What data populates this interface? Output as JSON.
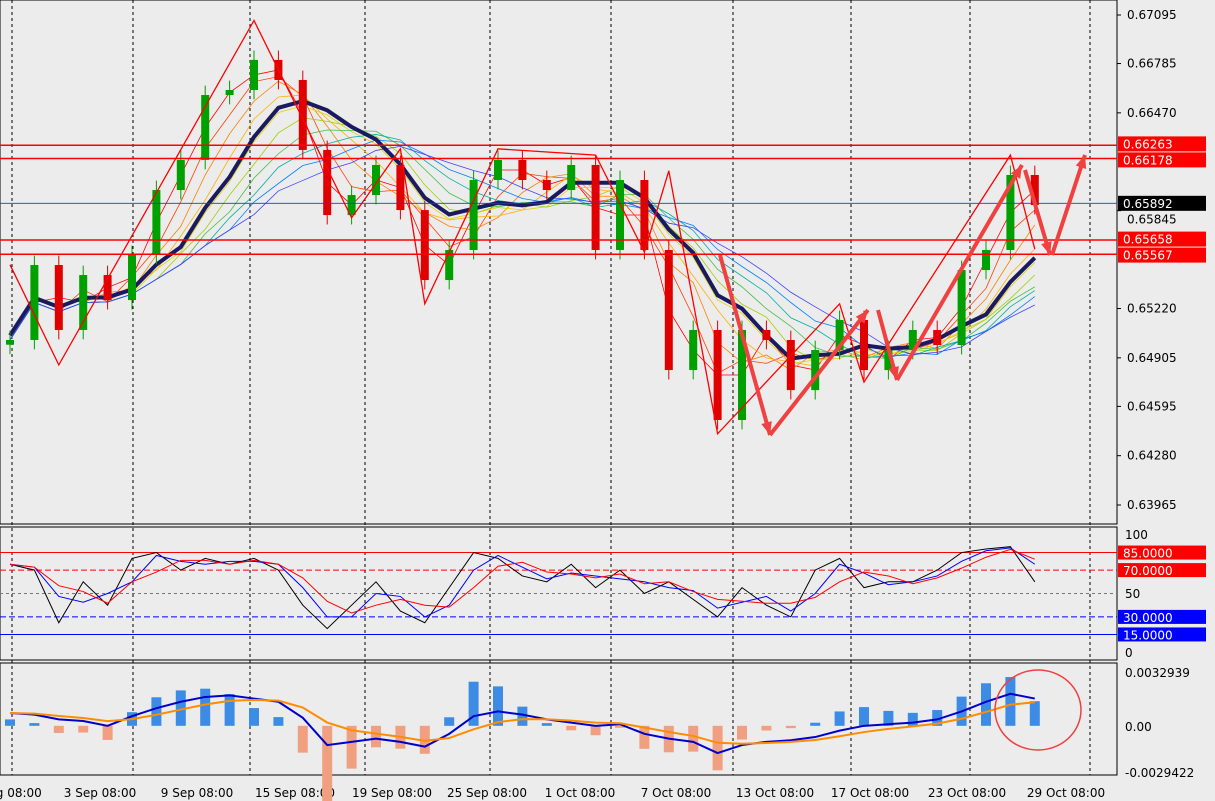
{
  "chart_data": {
    "type": "candlestick",
    "symbol_panel": "main",
    "price_axis": {
      "ticks": [
        "0.67095",
        "0.66785",
        "0.66470",
        "0.65845",
        "0.65220",
        "0.64905",
        "0.64595",
        "0.64280",
        "0.63965"
      ],
      "ylim": [
        0.63965,
        0.67095
      ]
    },
    "time_axis": {
      "ticks": [
        "ug 08:00",
        "3 Sep 08:00",
        "9 Sep 08:00",
        "15 Sep 08:00",
        "19 Sep 08:00",
        "25 Sep 08:00",
        "1 Oct 08:00",
        "7 Oct 08:00",
        "13 Oct 08:00",
        "17 Oct 08:00",
        "23 Oct 08:00",
        "29 Oct 08:00"
      ]
    },
    "closes": [
      0.65019,
      0.65498,
      0.65083,
      0.65434,
      0.65274,
      0.65562,
      0.65977,
      0.66169,
      0.66584,
      0.66616,
      0.66808,
      0.6668,
      0.66233,
      0.65817,
      0.65945,
      0.66137,
      0.65849,
      0.65402,
      0.65594,
      0.66041,
      0.66169,
      0.66041,
      0.65977,
      0.66137,
      0.65594,
      0.66041,
      0.65594,
      0.64827,
      0.65083,
      0.64508,
      0.65083,
      0.65019,
      0.64699,
      0.64955,
      0.65147,
      0.64827,
      0.64955,
      0.65083,
      0.64987,
      0.65466,
      0.65594,
      0.66073,
      0.65881
    ],
    "horizontal_lines": [
      {
        "price": "0.66263",
        "color": "#ff0000",
        "label": "0.66263"
      },
      {
        "price": "0.66178",
        "color": "#ff0000",
        "label": "0.66178"
      },
      {
        "price": "0.65892",
        "color": "#0040ff",
        "label": "0.65892",
        "current": true
      },
      {
        "price": "0.65658",
        "color": "#ff0000",
        "label": "0.65658"
      },
      {
        "price": "0.65567",
        "color": "#ff0000",
        "label": "0.65567"
      }
    ],
    "zigzag": [
      [
        0,
        0.655
      ],
      [
        2,
        0.6486
      ],
      [
        10,
        0.6706
      ],
      [
        14,
        0.658
      ],
      [
        16,
        0.6624
      ],
      [
        17,
        0.6525
      ],
      [
        20,
        0.6624
      ],
      [
        24,
        0.662
      ],
      [
        26,
        0.6558
      ],
      [
        27,
        0.661
      ],
      [
        29,
        0.6442
      ],
      [
        34,
        0.6525
      ],
      [
        35,
        0.6475
      ],
      [
        41,
        0.662
      ],
      [
        42,
        0.656
      ]
    ],
    "oscillator": {
      "levels": [
        {
          "value": "85.0000",
          "color": "#ff0000"
        },
        {
          "value": "70.0000",
          "color": "#ff0000"
        },
        {
          "value": "30.0000",
          "color": "#0000ff"
        },
        {
          "value": "15.0000",
          "color": "#0000ff"
        }
      ],
      "axis": [
        "100",
        "50",
        "0"
      ],
      "values": [
        75,
        70,
        25,
        60,
        40,
        80,
        85,
        70,
        80,
        75,
        80,
        70,
        40,
        20,
        40,
        60,
        35,
        25,
        55,
        85,
        80,
        65,
        60,
        75,
        55,
        70,
        50,
        60,
        45,
        30,
        55,
        40,
        30,
        70,
        80,
        55,
        60,
        60,
        70,
        85,
        88,
        90,
        60
      ]
    },
    "macd": {
      "axis": [
        "0.0032939",
        "0.00",
        "-0.0029422"
      ],
      "ylim": [
        -0.0029422,
        0.0032939
      ],
      "values": [
        0.0008,
        0.0007,
        0.0004,
        0.0003,
        0.0,
        0.0006,
        0.0011,
        0.0015,
        0.0018,
        0.0019,
        0.0017,
        0.0015,
        0.0005,
        -0.0012,
        -0.001,
        -0.0008,
        -0.001,
        -0.0013,
        -0.0005,
        0.0006,
        0.0009,
        0.0007,
        0.0004,
        0.0002,
        0.0,
        0.0001,
        -0.0005,
        -0.0008,
        -0.001,
        -0.0017,
        -0.0012,
        -0.001,
        -0.0009,
        -0.0007,
        -0.0003,
        0.0,
        0.0001,
        0.0002,
        0.0004,
        0.0009,
        0.0015,
        0.002,
        0.0017
      ]
    },
    "colors": {
      "bull": "#00a000",
      "bear": "#e00000",
      "ma": "#1a1a5e",
      "macd_line": "#0000cc",
      "signal_line": "#ff8c00",
      "hist_pos": "#3c8ce6",
      "hist_neg": "#f0a080",
      "annotation": "#f04040"
    }
  }
}
